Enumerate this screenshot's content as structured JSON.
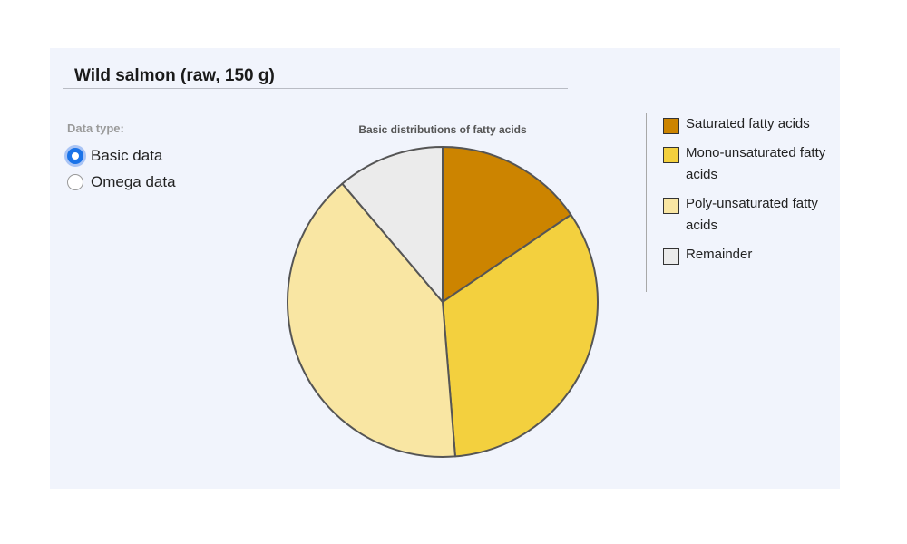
{
  "header": {
    "title": "Wild salmon (raw, 150 g)"
  },
  "controls": {
    "label": "Data type:",
    "options": [
      {
        "label": "Basic data",
        "checked": true
      },
      {
        "label": "Omega data",
        "checked": false
      }
    ]
  },
  "chart_data": {
    "type": "pie",
    "title": "Basic distributions of fatty acids",
    "start_angle_deg": 0,
    "direction": "clockwise",
    "legend_position": "right",
    "series": [
      {
        "name": "Saturated fatty acids",
        "value": 15.5,
        "color": "#cc8400"
      },
      {
        "name": "Mono-unsaturated fatty acids",
        "value": 33.2,
        "color": "#f3d03e"
      },
      {
        "name": "Poly-unsaturated fatty acids",
        "value": 40.1,
        "color": "#f9e6a3"
      },
      {
        "name": "Remainder",
        "value": 11.2,
        "color": "#ebebeb"
      }
    ]
  }
}
